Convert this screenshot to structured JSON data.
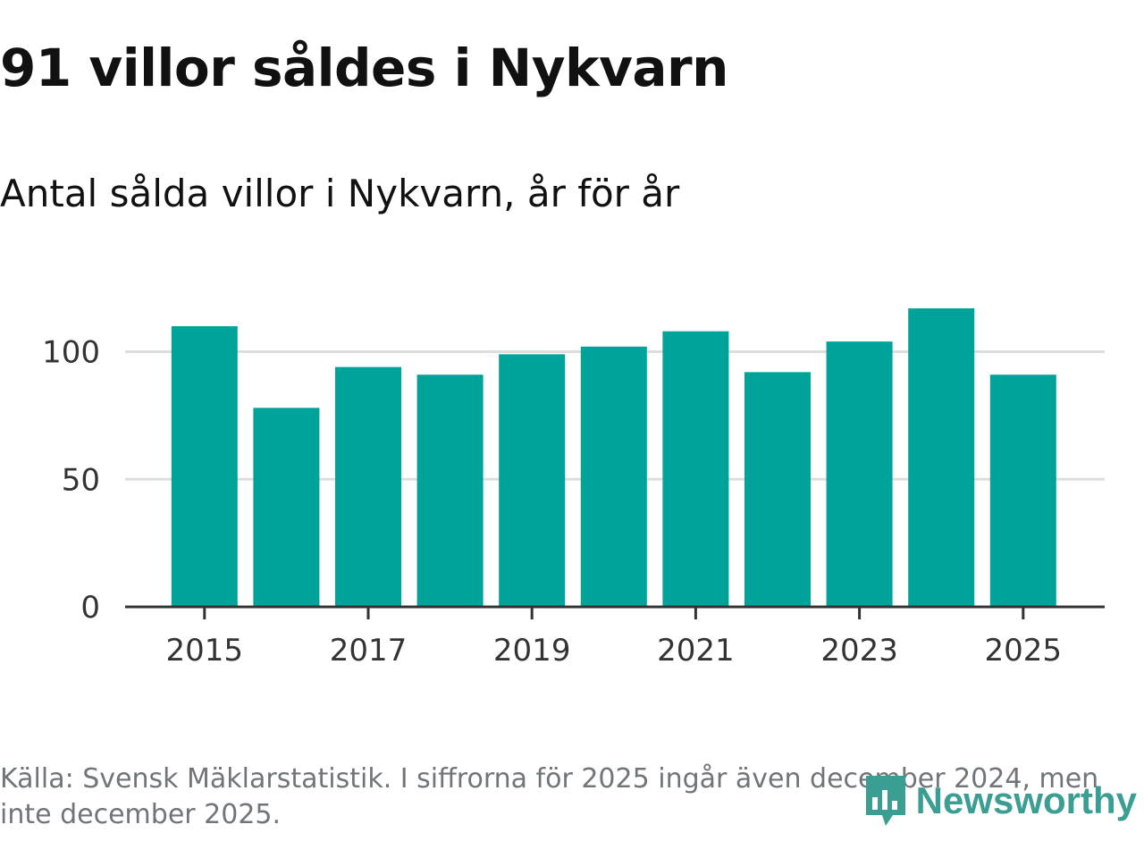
{
  "title": "91 villor såldes i Nykvarn",
  "subtitle": "Antal sålda villor i Nykvarn, år för år",
  "source": "Källa: Svensk Mäklarstatistik. I siffrorna för 2025 ingår även december 2024, men inte december 2025.",
  "brand": "Newsworthy",
  "colors": {
    "bar": "#00a39a",
    "grid": "#dddddd",
    "axis": "#333333",
    "brand": "#3b9e93"
  },
  "chart_data": {
    "type": "bar",
    "title": "91 villor såldes i Nykvarn",
    "subtitle": "Antal sålda villor i Nykvarn, år för år",
    "xlabel": "",
    "ylabel": "",
    "categories": [
      "2015",
      "2016",
      "2017",
      "2018",
      "2019",
      "2020",
      "2021",
      "2022",
      "2023",
      "2024",
      "2025"
    ],
    "values": [
      110,
      78,
      94,
      91,
      99,
      102,
      108,
      92,
      104,
      117,
      91
    ],
    "x_tick_labels": [
      "2015",
      "2017",
      "2019",
      "2021",
      "2023",
      "2025"
    ],
    "y_ticks": [
      0,
      50,
      100
    ],
    "ylim": [
      0,
      117
    ],
    "grid": true
  }
}
